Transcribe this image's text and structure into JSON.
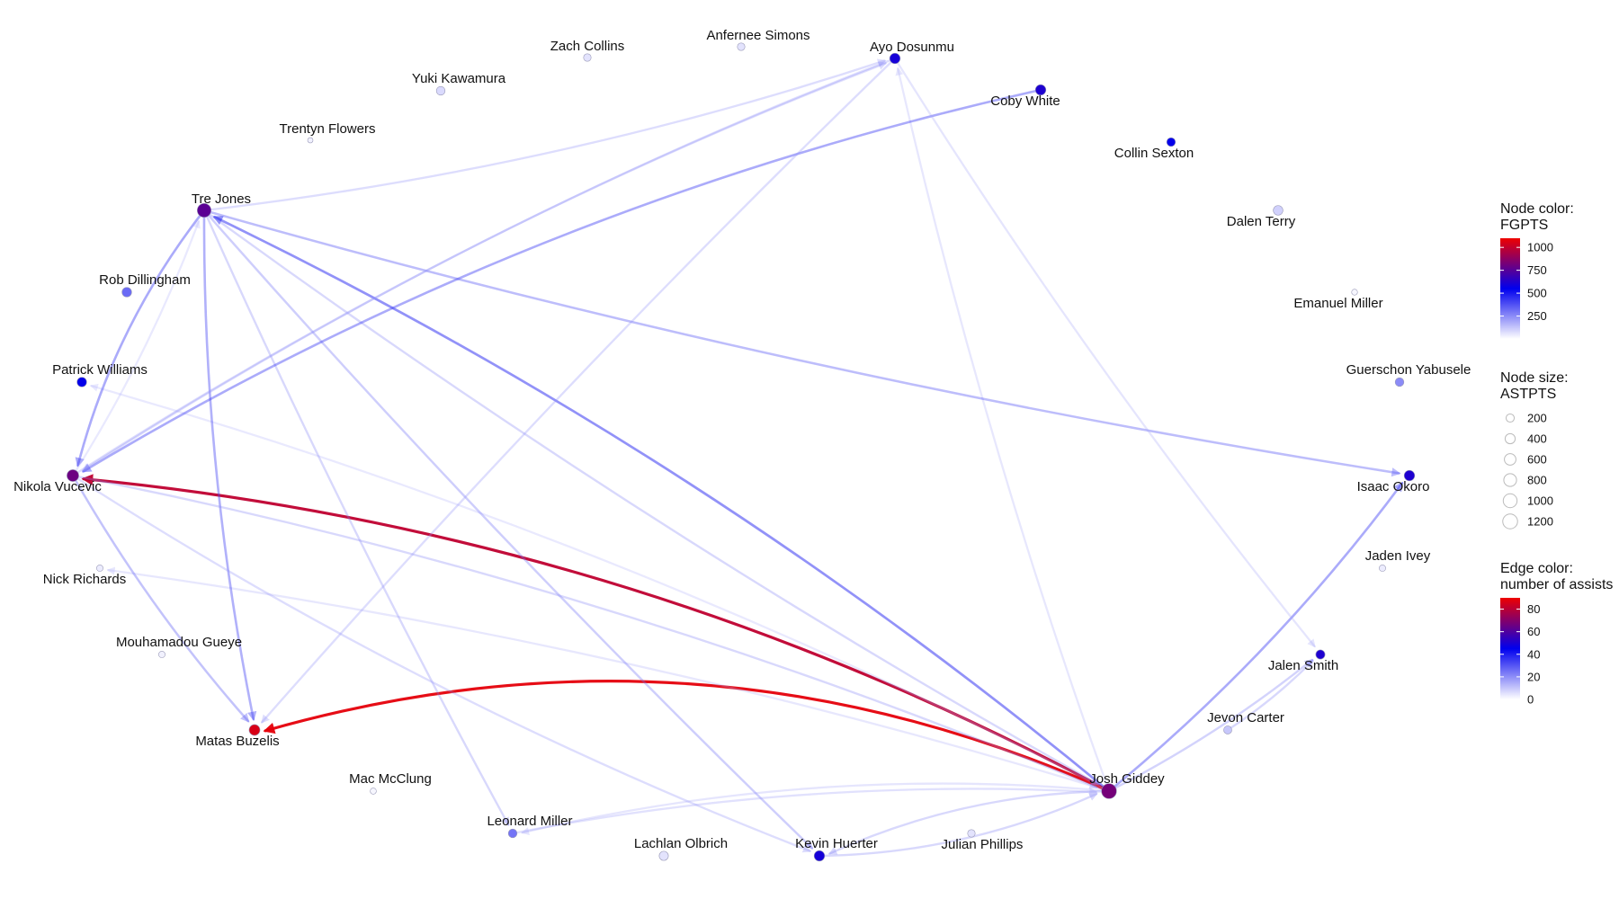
{
  "network": {
    "nodes": [
      {
        "id": "Zach Collins",
        "fgpts": 60,
        "astpts": 150
      },
      {
        "id": "Anfernee Simons",
        "fgpts": 60,
        "astpts": 150
      },
      {
        "id": "Ayo Dosunmu",
        "fgpts": 600,
        "astpts": 450
      },
      {
        "id": "Yuki Kawamura",
        "fgpts": 80,
        "astpts": 250
      },
      {
        "id": "Coby White",
        "fgpts": 620,
        "astpts": 450
      },
      {
        "id": "Trentyn Flowers",
        "fgpts": 30,
        "astpts": 30
      },
      {
        "id": "Collin Sexton",
        "fgpts": 560,
        "astpts": 250
      },
      {
        "id": "Tre Jones",
        "fgpts": 760,
        "astpts": 1000
      },
      {
        "id": "Dalen Terry",
        "fgpts": 100,
        "astpts": 350
      },
      {
        "id": "Rob Dillingham",
        "fgpts": 320,
        "astpts": 350
      },
      {
        "id": "Emanuel Miller",
        "fgpts": 20,
        "astpts": 50
      },
      {
        "id": "Patrick Williams",
        "fgpts": 560,
        "astpts": 350
      },
      {
        "id": "Guerschon Yabusele",
        "fgpts": 250,
        "astpts": 250
      },
      {
        "id": "Nikola Vucevic",
        "fgpts": 800,
        "astpts": 650
      },
      {
        "id": "Isaac Okoro",
        "fgpts": 620,
        "astpts": 450
      },
      {
        "id": "Nick Richards",
        "fgpts": 40,
        "astpts": 80
      },
      {
        "id": "Jaden Ivey",
        "fgpts": 40,
        "astpts": 80
      },
      {
        "id": "Mouhamadou Gueye",
        "fgpts": 30,
        "astpts": 80
      },
      {
        "id": "Jalen Smith",
        "fgpts": 620,
        "astpts": 300
      },
      {
        "id": "Jevon Carter",
        "fgpts": 120,
        "astpts": 200
      },
      {
        "id": "Matas Buzelis",
        "fgpts": 1050,
        "astpts": 500
      },
      {
        "id": "Josh Giddey",
        "fgpts": 820,
        "astpts": 1250
      },
      {
        "id": "Mac McClung",
        "fgpts": 20,
        "astpts": 60
      },
      {
        "id": "Leonard Miller",
        "fgpts": 300,
        "astpts": 250
      },
      {
        "id": "Lachlan Olbrich",
        "fgpts": 60,
        "astpts": 300
      },
      {
        "id": "Kevin Huerter",
        "fgpts": 600,
        "astpts": 450
      },
      {
        "id": "Julian Phillips",
        "fgpts": 60,
        "astpts": 150
      }
    ],
    "edges": [
      {
        "from": "Josh Giddey",
        "to": "Nikola Vucevic",
        "assists": 80
      },
      {
        "from": "Josh Giddey",
        "to": "Matas Buzelis",
        "assists": 88
      },
      {
        "from": "Josh Giddey",
        "to": "Tre Jones",
        "assists": 35
      },
      {
        "from": "Josh Giddey",
        "to": "Isaac Okoro",
        "assists": 28
      },
      {
        "from": "Josh Giddey",
        "to": "Jalen Smith",
        "assists": 14
      },
      {
        "from": "Josh Giddey",
        "to": "Ayo Dosunmu",
        "assists": 5
      },
      {
        "from": "Josh Giddey",
        "to": "Leonard Miller",
        "assists": 6
      },
      {
        "from": "Josh Giddey",
        "to": "Kevin Huerter",
        "assists": 12
      },
      {
        "from": "Josh Giddey",
        "to": "Nick Richards",
        "assists": 5
      },
      {
        "from": "Josh Giddey",
        "to": "Patrick Williams",
        "assists": 4
      },
      {
        "from": "Tre Jones",
        "to": "Nikola Vucevic",
        "assists": 28
      },
      {
        "from": "Tre Jones",
        "to": "Matas Buzelis",
        "assists": 26
      },
      {
        "from": "Tre Jones",
        "to": "Isaac Okoro",
        "assists": 22
      },
      {
        "from": "Tre Jones",
        "to": "Ayo Dosunmu",
        "assists": 10
      },
      {
        "from": "Tre Jones",
        "to": "Leonard Miller",
        "assists": 12
      },
      {
        "from": "Tre Jones",
        "to": "Kevin Huerter",
        "assists": 16
      },
      {
        "from": "Tre Jones",
        "to": "Josh Giddey",
        "assists": 12
      },
      {
        "from": "Coby White",
        "to": "Nikola Vucevic",
        "assists": 28
      },
      {
        "from": "Ayo Dosunmu",
        "to": "Nikola Vucevic",
        "assists": 10
      },
      {
        "from": "Ayo Dosunmu",
        "to": "Matas Buzelis",
        "assists": 10
      },
      {
        "from": "Ayo Dosunmu",
        "to": "Jalen Smith",
        "assists": 6
      },
      {
        "from": "Nikola Vucevic",
        "to": "Matas Buzelis",
        "assists": 20
      },
      {
        "from": "Nikola Vucevic",
        "to": "Ayo Dosunmu",
        "assists": 10
      },
      {
        "from": "Nikola Vucevic",
        "to": "Josh Giddey",
        "assists": 12
      },
      {
        "from": "Nikola Vucevic",
        "to": "Kevin Huerter",
        "assists": 10
      },
      {
        "from": "Nikola Vucevic",
        "to": "Tre Jones",
        "assists": 4
      },
      {
        "from": "Kevin Huerter",
        "to": "Josh Giddey",
        "assists": 12
      },
      {
        "from": "Leonard Miller",
        "to": "Josh Giddey",
        "assists": 8
      },
      {
        "from": "Jevon Carter",
        "to": "Jalen Smith",
        "assists": 12
      }
    ]
  },
  "legend": {
    "node_color": {
      "title_line1": "Node color:",
      "title_line2": "FGPTS",
      "ticks": [
        "1000",
        "750",
        "500",
        "250"
      ],
      "tick_values": [
        1000,
        750,
        500,
        250
      ],
      "min": 0,
      "max": 1100
    },
    "node_size": {
      "title_line1": "Node size:",
      "title_line2": "ASTPTS",
      "items": [
        "200",
        "400",
        "600",
        "800",
        "1000",
        "1200"
      ],
      "item_values": [
        200,
        400,
        600,
        800,
        1000,
        1200
      ]
    },
    "edge_color": {
      "title_line1": "Edge color:",
      "title_line2": "number of assists",
      "ticks": [
        "80",
        "60",
        "40",
        "20",
        "0"
      ],
      "tick_values": [
        80,
        60,
        40,
        20,
        0
      ],
      "min": 0,
      "max": 90
    }
  },
  "colors": {
    "low": "#ffffff",
    "mid": "#0000ee",
    "high": "#ee0000",
    "text": "#111111"
  }
}
